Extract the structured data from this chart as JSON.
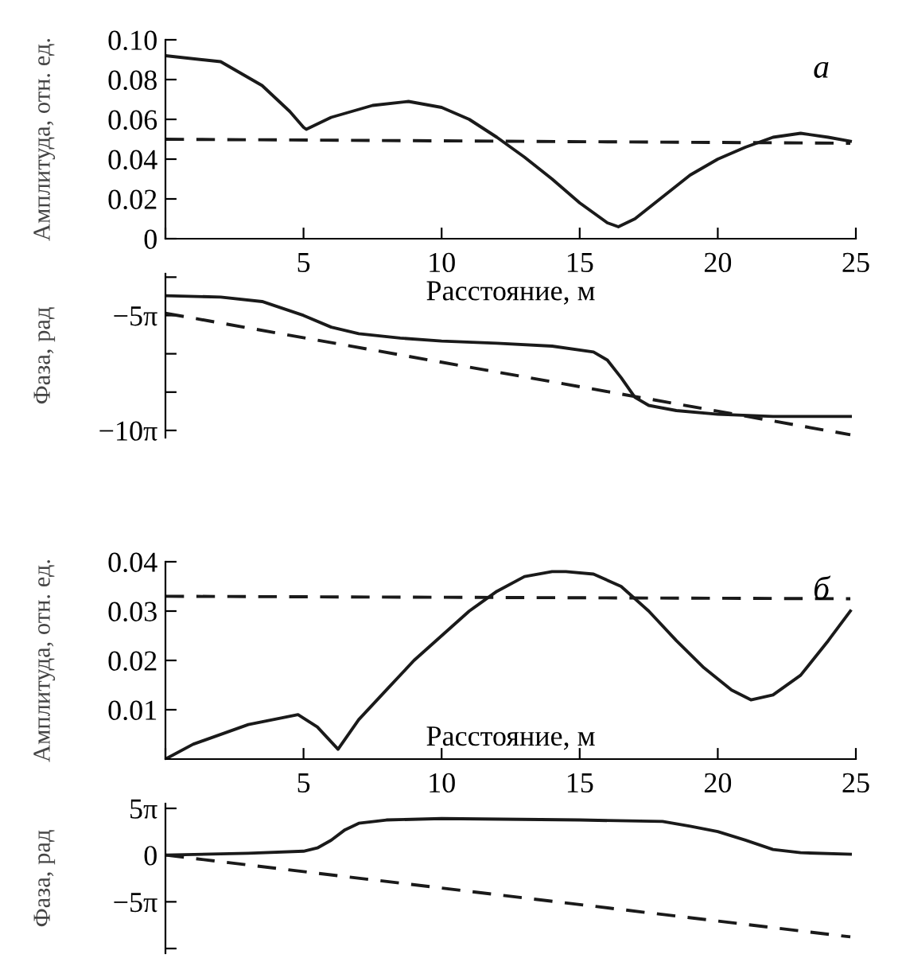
{
  "chart_data": [
    {
      "type": "line",
      "ylabel": "Амплитуда, отн. ед.",
      "xlabel": "Расстояние, м",
      "annotations": [
        "а"
      ],
      "xlim": [
        0,
        25
      ],
      "xticks": [
        {
          "value": 0,
          "label": null
        },
        5,
        10,
        15,
        20,
        25
      ],
      "ylim": [
        0,
        0.1
      ],
      "yticks": [
        {
          "value": 0,
          "label": "0"
        },
        {
          "value": 0.02,
          "label": "0.02"
        },
        {
          "value": 0.04,
          "label": "0.04"
        },
        {
          "value": 0.06,
          "label": "0.06"
        },
        {
          "value": 0.08,
          "label": "0.08"
        },
        {
          "value": 0.1,
          "label": "0.10"
        }
      ],
      "series": [
        {
          "color": "#1a1a1a",
          "line_style": "solid",
          "x": [
            0,
            2,
            3.5,
            4.5,
            5,
            5.1,
            6,
            7.5,
            8.8,
            10,
            11,
            12,
            13,
            14,
            15,
            16,
            16.4,
            17,
            18,
            19,
            20,
            21,
            22,
            23,
            24,
            24.8
          ],
          "values": [
            0.092,
            0.089,
            0.077,
            0.064,
            0.056,
            0.055,
            0.061,
            0.067,
            0.069,
            0.066,
            0.06,
            0.051,
            0.041,
            0.03,
            0.018,
            0.008,
            0.006,
            0.01,
            0.021,
            0.032,
            0.04,
            0.046,
            0.051,
            0.053,
            0.051,
            0.049
          ]
        },
        {
          "color": "#1a1a1a",
          "line_style": "dashed",
          "x": [
            0,
            24.8
          ],
          "values": [
            0.05,
            0.048
          ]
        }
      ]
    },
    {
      "type": "line",
      "ylabel": "Фаза, рад",
      "tick_labels": "y",
      "xlim": [
        0,
        25
      ],
      "ylim": [
        -32.4,
        -10.0
      ],
      "yticks": [
        {
          "value": -10.47,
          "label": null
        },
        {
          "value": -15.708,
          "label": "−5π"
        },
        {
          "value": -20.94,
          "label": null
        },
        {
          "value": -26.18,
          "label": null
        },
        {
          "value": -31.416,
          "label": "−10π"
        }
      ],
      "series": [
        {
          "color": "#1a1a1a",
          "line_style": "solid",
          "x": [
            0,
            2,
            3.5,
            5,
            6,
            7,
            8.5,
            10,
            12,
            14,
            15.5,
            16,
            16.5,
            17,
            17.5,
            18.5,
            20,
            22,
            24.8
          ],
          "values": [
            -13.0,
            -13.2,
            -13.8,
            -15.7,
            -17.3,
            -18.2,
            -18.8,
            -19.2,
            -19.5,
            -19.9,
            -20.7,
            -21.8,
            -24.2,
            -26.9,
            -28.0,
            -28.7,
            -29.2,
            -29.5,
            -29.5
          ]
        },
        {
          "color": "#1a1a1a",
          "line_style": "dashed",
          "x": [
            0,
            24.8
          ],
          "values": [
            -15.4,
            -32.0
          ]
        }
      ]
    },
    {
      "type": "line",
      "ylabel": "Амплитуда, отн. ед.",
      "xlabel": "Расстояние, м",
      "annotations": [
        "б"
      ],
      "xlim": [
        0,
        25
      ],
      "xticks": [
        {
          "value": 0,
          "label": null
        },
        5,
        10,
        15,
        20,
        25
      ],
      "ylim": [
        0,
        0.04
      ],
      "yticks": [
        {
          "value": 0.01,
          "label": "0.01"
        },
        {
          "value": 0.02,
          "label": "0.02"
        },
        {
          "value": 0.03,
          "label": "0.03"
        },
        {
          "value": 0.04,
          "label": "0.04"
        }
      ],
      "series": [
        {
          "color": "#1a1a1a",
          "line_style": "solid",
          "x": [
            0,
            1,
            3,
            4.8,
            5.5,
            6.25,
            7,
            8,
            9,
            10,
            11,
            12,
            13,
            14,
            14.5,
            15.5,
            16.5,
            17.5,
            18.5,
            19.5,
            20.5,
            21.2,
            22,
            23,
            24,
            24.8
          ],
          "values": [
            0.0,
            0.003,
            0.007,
            0.009,
            0.0065,
            0.002,
            0.008,
            0.014,
            0.02,
            0.025,
            0.03,
            0.034,
            0.037,
            0.038,
            0.038,
            0.0375,
            0.035,
            0.03,
            0.024,
            0.0185,
            0.014,
            0.012,
            0.013,
            0.017,
            0.024,
            0.03
          ]
        },
        {
          "color": "#1a1a1a",
          "line_style": "dashed",
          "x": [
            0,
            24.8
          ],
          "values": [
            0.033,
            0.0325
          ]
        }
      ]
    },
    {
      "type": "line",
      "ylabel": "Фаза, рад",
      "tick_labels": "y",
      "xlim": [
        0,
        25
      ],
      "ylim": [
        -33.0,
        17.3
      ],
      "yticks": [
        {
          "value": 15.708,
          "label": "5π"
        },
        {
          "value": 0,
          "label": "0"
        },
        {
          "value": -15.708,
          "label": "−5π"
        },
        {
          "value": -31.416,
          "label": null
        }
      ],
      "series": [
        {
          "color": "#1a1a1a",
          "line_style": "solid",
          "x": [
            0,
            3,
            5,
            5.5,
            6,
            6.5,
            7,
            8,
            10,
            15,
            18,
            19,
            20,
            21,
            22,
            23,
            24.8
          ],
          "values": [
            0,
            0.6,
            1.3,
            2.4,
            5.0,
            8.5,
            10.7,
            11.8,
            12.3,
            11.8,
            11.3,
            9.7,
            7.9,
            5.0,
            1.9,
            0.8,
            0.3
          ]
        },
        {
          "color": "#1a1a1a",
          "line_style": "dashed",
          "x": [
            0,
            24.8
          ],
          "values": [
            0,
            -27.5
          ]
        }
      ]
    }
  ]
}
